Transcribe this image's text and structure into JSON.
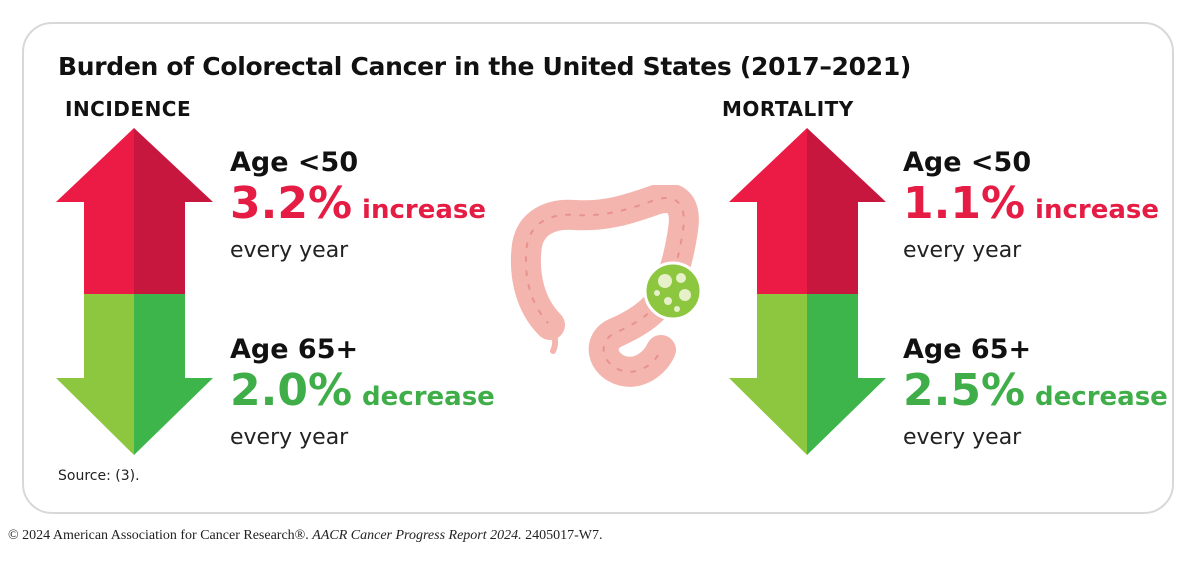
{
  "title": "Burden of Colorectal Cancer in the United States (2017–2021)",
  "incidence": {
    "label": "INCIDENCE",
    "young": {
      "age": "Age <50",
      "value": "3.2%",
      "change": "increase",
      "period": "every year"
    },
    "old": {
      "age": "Age 65+",
      "value": "2.0%",
      "change": "decrease",
      "period": "every year"
    }
  },
  "mortality": {
    "label": "MORTALITY",
    "young": {
      "age": "Age <50",
      "value": "1.1%",
      "change": "increase",
      "period": "every year"
    },
    "old": {
      "age": "Age 65+",
      "value": "2.5%",
      "change": "decrease",
      "period": "every year"
    }
  },
  "source": "Source: (3).",
  "footer": {
    "org": "© 2024 American Association for Cancer Research®. ",
    "report": "AACR Cancer Progress Report 2024.",
    "code": " 2405017-W7."
  },
  "colors": {
    "increase": "#e51d45",
    "decrease": "#3fae49"
  },
  "icons": [
    "up-arrow-icon",
    "down-arrow-icon",
    "colon-illustration-icon"
  ]
}
